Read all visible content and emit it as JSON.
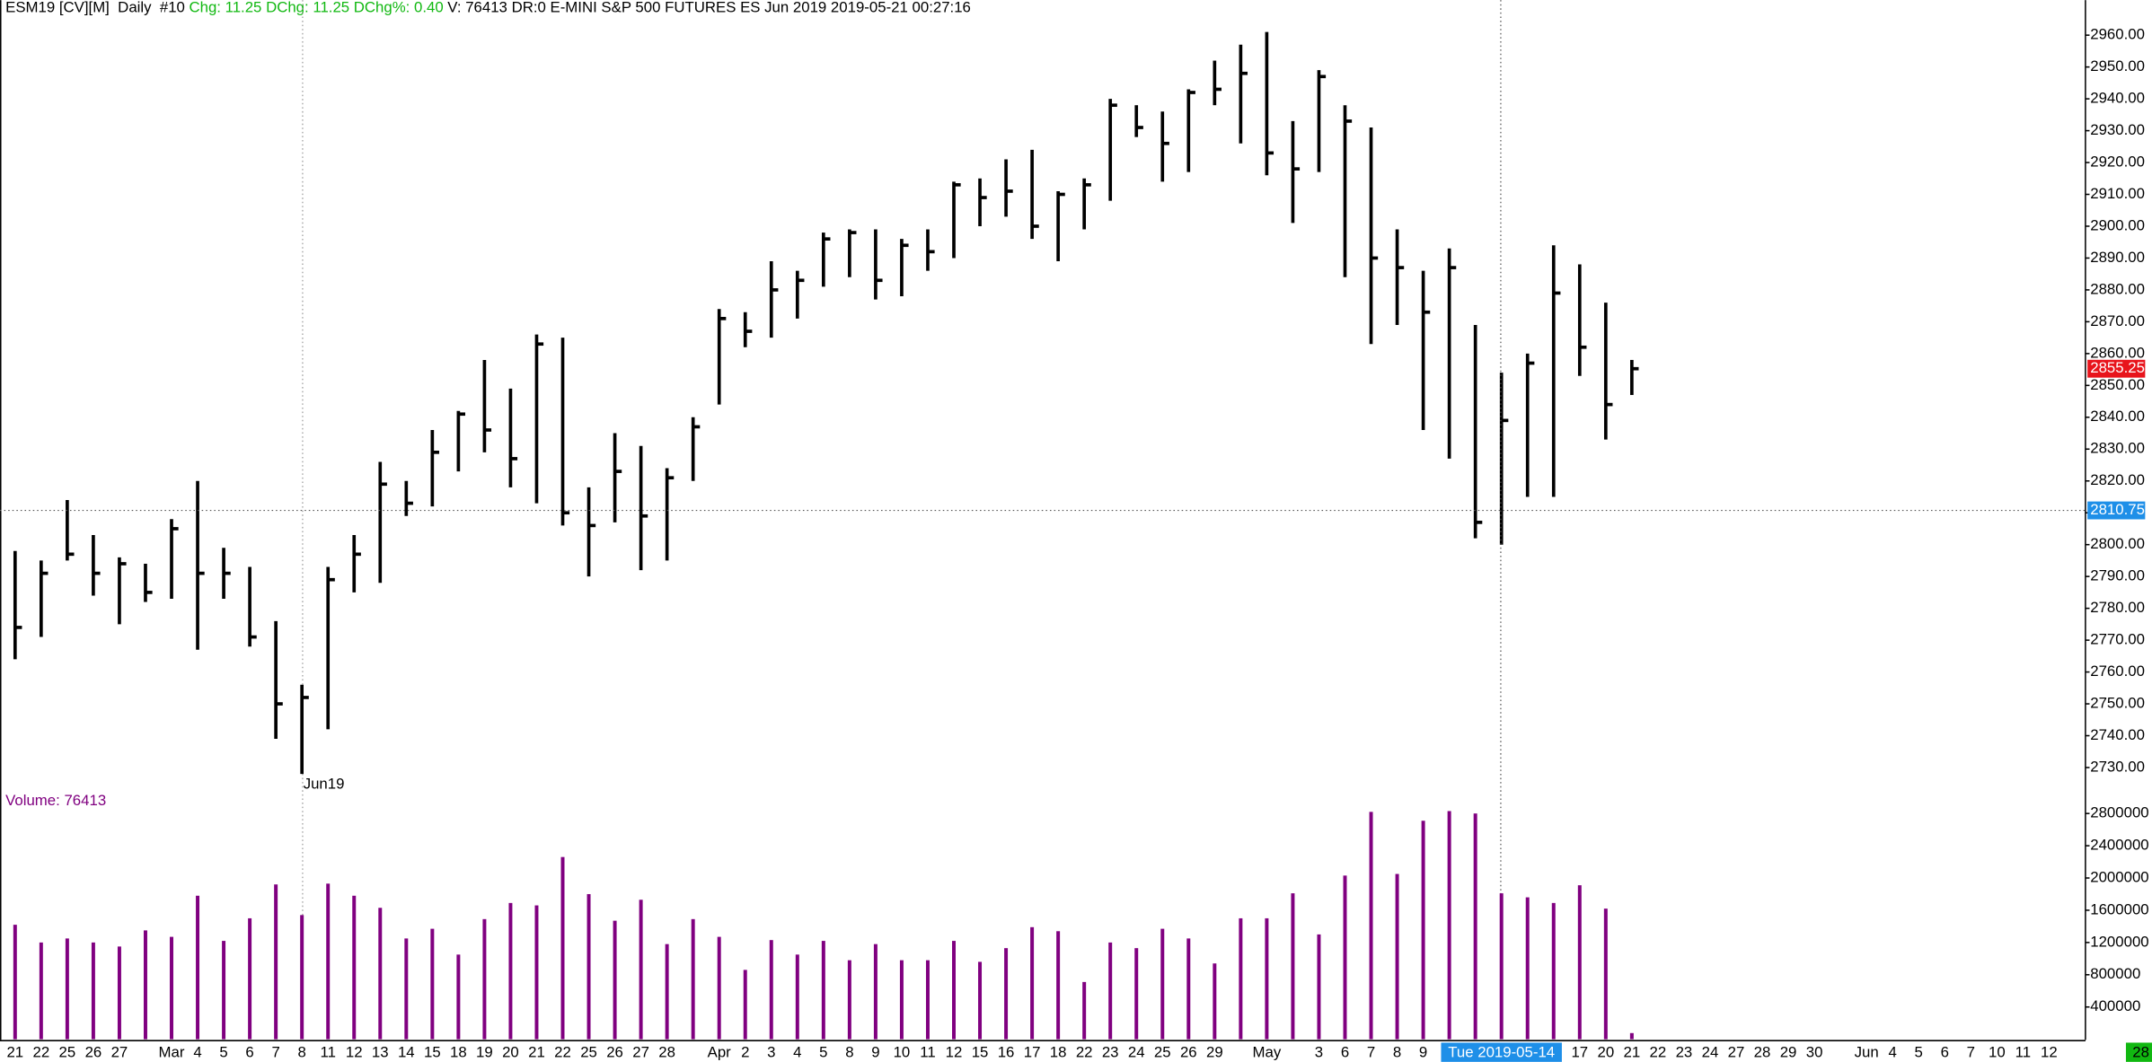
{
  "header": {
    "symbol": "ESM19 [CV][M]  Daily  #10",
    "change": "Chg: 11.25 DChg: 11.25 DChg%: 0.40",
    "info": "V: 76413 DR:0 E-MINI S&P 500 FUTURES ES Jun 2019 2019-05-21 00:27:16"
  },
  "corner_label": "28",
  "chart_data": [
    {
      "type": "ohlc",
      "categories": [
        "21",
        "22",
        "25",
        "26",
        "27",
        null,
        "Mar",
        "4",
        "5",
        "6",
        "7",
        "8",
        "11",
        "12",
        "13",
        "14",
        "15",
        "18",
        "19",
        "20",
        "21",
        "22",
        "25",
        "26",
        "27",
        "28",
        null,
        "Apr",
        "2",
        "3",
        "4",
        "5",
        "8",
        "9",
        "10",
        "11",
        "12",
        "15",
        "16",
        "17",
        "18",
        "22",
        "23",
        "24",
        "25",
        "26",
        "29",
        null,
        "May",
        null,
        "3",
        "6",
        "7",
        "8",
        "9",
        null,
        null,
        "Tue 2019-05-14",
        null,
        null,
        "17",
        "20",
        "21",
        "22",
        "23",
        "24",
        "27",
        "28",
        "29",
        "30",
        null,
        "Jun",
        "4",
        "5",
        "6",
        "7",
        "10",
        "11",
        "12"
      ],
      "high": [
        2798,
        2795,
        2814,
        2803,
        2796,
        2794,
        2808,
        2820,
        2799,
        2793,
        2776,
        2756,
        2793,
        2803,
        2826,
        2820,
        2836,
        2842,
        2858,
        2849,
        2866,
        2865,
        2818,
        2835,
        2831,
        2824,
        2840,
        2874,
        2873,
        2889,
        2886,
        2898,
        2899,
        2899,
        2896,
        2899,
        2914,
        2915,
        2921,
        2924,
        2911,
        2915,
        2940,
        2938,
        2936,
        2943,
        2952,
        2957,
        2961,
        2933,
        2949,
        2938,
        2931,
        2899,
        2886,
        2893,
        2869,
        2854,
        2860,
        2894,
        2888,
        2876,
        2858,
        null,
        null,
        null,
        null,
        null,
        null,
        null,
        null,
        null,
        null,
        null,
        null,
        null,
        null,
        null,
        null
      ],
      "low": [
        2764,
        2771,
        2795,
        2784,
        2775,
        2782,
        2783,
        2767,
        2783,
        2768,
        2739,
        2728,
        2742,
        2785,
        2788,
        2809,
        2812,
        2823,
        2829,
        2818,
        2813,
        2806,
        2790,
        2807,
        2792,
        2795,
        2820,
        2844,
        2862,
        2865,
        2871,
        2881,
        2884,
        2877,
        2878,
        2886,
        2890,
        2900,
        2903,
        2896,
        2889,
        2899,
        2908,
        2928,
        2914,
        2917,
        2938,
        2926,
        2916,
        2901,
        2917,
        2884,
        2863,
        2869,
        2836,
        2827,
        2802,
        2800,
        2815,
        2815,
        2853,
        2833,
        2847,
        null,
        null,
        null,
        null,
        null,
        null,
        null,
        null,
        null,
        null,
        null,
        null,
        null,
        null,
        null,
        null
      ],
      "close": [
        2774,
        2791,
        2797,
        2791,
        2794,
        2785,
        2805,
        2791,
        2791,
        2771,
        2750,
        2752,
        2789,
        2797,
        2819,
        2813,
        2829,
        2841,
        2836,
        2827,
        2863,
        2810,
        2806,
        2823,
        2809,
        2821,
        2837,
        2871,
        2867,
        2880,
        2883,
        2896,
        2898,
        2883,
        2894,
        2892,
        2913,
        2909,
        2911,
        2900,
        2910,
        2913,
        2938,
        2931,
        2926,
        2942,
        2943,
        2948,
        2923,
        2918,
        2947,
        2933,
        2890,
        2887,
        2873,
        2887,
        2807,
        2839,
        2857,
        2879,
        2862,
        2844,
        2855.25,
        null,
        null,
        null,
        null,
        null,
        null,
        null,
        null,
        null,
        null,
        null,
        null,
        null,
        null,
        null,
        null
      ],
      "color": "#000000",
      "ylim": [
        2722,
        2971
      ],
      "yticks": [
        {
          "value": 2730,
          "label": "2730.00"
        },
        {
          "value": 2740,
          "label": "2740.00"
        },
        {
          "value": 2750,
          "label": "2750.00"
        },
        {
          "value": 2760,
          "label": "2760.00"
        },
        {
          "value": 2770,
          "label": "2770.00"
        },
        {
          "value": 2780,
          "label": "2780.00"
        },
        {
          "value": 2790,
          "label": "2790.00"
        },
        {
          "value": 2800,
          "label": "2800.00"
        },
        {
          "value": 2810,
          "label": "2810.00"
        },
        {
          "value": 2820,
          "label": "2820.00"
        },
        {
          "value": 2830,
          "label": "2830.00"
        },
        {
          "value": 2840,
          "label": "2840.00"
        },
        {
          "value": 2850,
          "label": "2850.00"
        },
        {
          "value": 2860,
          "label": "2860.00"
        },
        {
          "value": 2870,
          "label": "2870.00"
        },
        {
          "value": 2880,
          "label": "2880.00"
        },
        {
          "value": 2890,
          "label": "2890.00"
        },
        {
          "value": 2900,
          "label": "2900.00"
        },
        {
          "value": 2910,
          "label": "2910.00"
        },
        {
          "value": 2920,
          "label": "2920.00"
        },
        {
          "value": 2930,
          "label": "2930.00"
        },
        {
          "value": 2940,
          "label": "2940.00"
        },
        {
          "value": 2950,
          "label": "2950.00"
        },
        {
          "value": 2960,
          "label": "2960.00"
        }
      ],
      "annotation": {
        "text": "Jun19",
        "category_index": 11
      },
      "last_price": 2855.25,
      "last_price_color": "#e8141c",
      "crosshair": {
        "price": 2810.75,
        "category_index": 57,
        "color": "#1e8fe8"
      }
    },
    {
      "type": "bar",
      "title": "Volume: 76413",
      "values": [
        1420000,
        1200000,
        1250000,
        1200000,
        1150000,
        1350000,
        1270000,
        1780000,
        1220000,
        1500000,
        1920000,
        1540000,
        1930000,
        1780000,
        1630000,
        1250000,
        1370000,
        1050000,
        1490000,
        1690000,
        1660000,
        2260000,
        1800000,
        1470000,
        1730000,
        1180000,
        1490000,
        1270000,
        860000,
        1230000,
        1050000,
        1220000,
        980000,
        1180000,
        980000,
        980000,
        1220000,
        960000,
        1130000,
        1390000,
        1340000,
        710000,
        1200000,
        1130000,
        1370000,
        1250000,
        940000,
        1500000,
        1500000,
        1810000,
        1300000,
        2030000,
        2820000,
        2050000,
        2710000,
        2830000,
        2800000,
        1810000,
        1760000,
        1690000,
        1910000,
        1620000,
        76413,
        null,
        null,
        null,
        null,
        null,
        null,
        null,
        null,
        null,
        null,
        null,
        null,
        null,
        null,
        null,
        null
      ],
      "color": "#800080",
      "ylim": [
        0,
        3020000
      ],
      "yticks": [
        400000,
        800000,
        1200000,
        1600000,
        2000000,
        2400000,
        2800000
      ]
    }
  ]
}
